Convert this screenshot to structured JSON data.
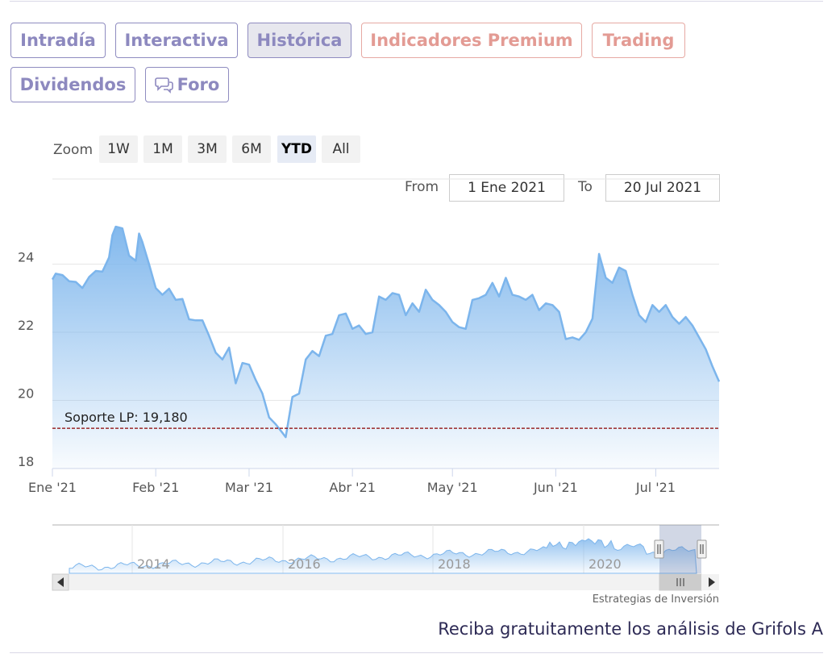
{
  "tabs": [
    {
      "label": "Intradía",
      "active": false,
      "premium": false
    },
    {
      "label": "Interactiva",
      "active": false,
      "premium": false
    },
    {
      "label": "Histórica",
      "active": true,
      "premium": false
    },
    {
      "label": "Indicadores Premium",
      "active": false,
      "premium": true
    },
    {
      "label": "Trading",
      "active": false,
      "premium": true
    },
    {
      "label": "Dividendos",
      "active": false,
      "premium": false
    },
    {
      "label": "Foro",
      "active": false,
      "premium": false,
      "icon": "chat-bubbles-icon"
    }
  ],
  "zoom": {
    "label": "Zoom",
    "options": [
      "1W",
      "1M",
      "3M",
      "6M",
      "YTD",
      "All"
    ],
    "selected": "YTD"
  },
  "range": {
    "from_label": "From",
    "from_value": "1 Ene 2021",
    "to_label": "To",
    "to_value": "20 Jul 2021"
  },
  "chart_data": {
    "type": "area",
    "xlabel": "",
    "ylabel": "",
    "x_range": [
      "2021-01-01",
      "2021-07-20"
    ],
    "ylim": [
      18,
      26.5
    ],
    "y_ticks": [
      "18",
      "20",
      "22",
      "24"
    ],
    "x_ticks": [
      {
        "date": "2021-01-01",
        "label": "Ene '21"
      },
      {
        "date": "2021-02-01",
        "label": "Feb '21"
      },
      {
        "date": "2021-03-01",
        "label": "Mar '21"
      },
      {
        "date": "2021-04-01",
        "label": "Abr '21"
      },
      {
        "date": "2021-05-01",
        "label": "May '21"
      },
      {
        "date": "2021-06-01",
        "label": "Jun '21"
      },
      {
        "date": "2021-07-01",
        "label": "Jul '21"
      }
    ],
    "grid": true,
    "line_color": "#7cb5ec",
    "support_line": {
      "label": "Soporte LP: 19,180",
      "value": 19.18,
      "color": "#8b0000"
    },
    "series": [
      {
        "x": [
          "2021-01-01",
          "2021-01-02",
          "2021-01-04",
          "2021-01-06",
          "2021-01-08",
          "2021-01-10",
          "2021-01-12",
          "2021-01-14",
          "2021-01-16",
          "2021-01-18",
          "2021-01-19",
          "2021-01-20",
          "2021-01-22",
          "2021-01-24",
          "2021-01-26",
          "2021-01-27",
          "2021-01-28",
          "2021-01-30",
          "2021-02-01",
          "2021-02-03",
          "2021-02-05",
          "2021-02-07",
          "2021-02-09",
          "2021-02-11",
          "2021-02-13",
          "2021-02-15",
          "2021-02-17",
          "2021-02-19",
          "2021-02-21",
          "2021-02-23",
          "2021-02-25",
          "2021-02-27",
          "2021-03-01",
          "2021-03-03",
          "2021-03-05",
          "2021-03-07",
          "2021-03-09",
          "2021-03-11",
          "2021-03-12",
          "2021-03-14",
          "2021-03-16",
          "2021-03-18",
          "2021-03-20",
          "2021-03-22",
          "2021-03-24",
          "2021-03-26",
          "2021-03-28",
          "2021-03-30",
          "2021-04-01",
          "2021-04-03",
          "2021-04-05",
          "2021-04-07",
          "2021-04-09",
          "2021-04-11",
          "2021-04-13",
          "2021-04-15",
          "2021-04-17",
          "2021-04-19",
          "2021-04-21",
          "2021-04-23",
          "2021-04-25",
          "2021-04-27",
          "2021-04-29",
          "2021-05-01",
          "2021-05-03",
          "2021-05-05",
          "2021-05-07",
          "2021-05-09",
          "2021-05-11",
          "2021-05-13",
          "2021-05-15",
          "2021-05-17",
          "2021-05-19",
          "2021-05-21",
          "2021-05-23",
          "2021-05-25",
          "2021-05-27",
          "2021-05-29",
          "2021-05-31",
          "2021-06-02",
          "2021-06-04",
          "2021-06-06",
          "2021-06-08",
          "2021-06-10",
          "2021-06-12",
          "2021-06-14",
          "2021-06-16",
          "2021-06-18",
          "2021-06-20",
          "2021-06-22",
          "2021-06-24",
          "2021-06-26",
          "2021-06-28",
          "2021-06-30",
          "2021-07-02",
          "2021-07-04",
          "2021-07-06",
          "2021-07-08",
          "2021-07-10",
          "2021-07-12",
          "2021-07-14",
          "2021-07-16",
          "2021-07-18",
          "2021-07-20"
        ],
        "values": [
          23.55,
          23.72,
          23.68,
          23.5,
          23.48,
          23.3,
          23.62,
          23.8,
          23.78,
          24.2,
          24.85,
          25.1,
          25.05,
          24.25,
          24.1,
          24.9,
          24.65,
          24.0,
          23.3,
          23.1,
          23.28,
          22.95,
          22.98,
          22.38,
          22.35,
          22.35,
          21.9,
          21.4,
          21.2,
          21.55,
          20.5,
          21.1,
          21.05,
          20.6,
          20.2,
          19.5,
          19.3,
          19.05,
          18.92,
          20.1,
          20.2,
          21.2,
          21.45,
          21.3,
          21.9,
          21.95,
          22.5,
          22.55,
          22.1,
          22.2,
          21.95,
          22.0,
          23.05,
          22.95,
          23.15,
          23.1,
          22.5,
          22.85,
          22.6,
          23.25,
          22.95,
          22.8,
          22.6,
          22.3,
          22.15,
          22.1,
          22.95,
          23.0,
          23.1,
          23.45,
          23.05,
          23.6,
          23.1,
          23.05,
          22.95,
          23.1,
          22.65,
          22.85,
          22.8,
          22.6,
          21.8,
          21.85,
          21.78,
          22.0,
          22.4,
          24.3,
          23.6,
          23.45,
          23.9,
          23.8,
          23.1,
          22.5,
          22.3,
          22.8,
          22.6,
          22.8,
          22.45,
          22.25,
          22.45,
          22.2,
          21.85,
          21.5,
          21.0,
          20.55
        ],
        "name": ""
      }
    ],
    "navigator": {
      "x_ticks": [
        "2014",
        "2016",
        "2018",
        "2020"
      ],
      "credit": "Estrategias de Inversión"
    }
  },
  "cta": {
    "text": "Reciba gratuitamente los análisis de Grifols A"
  }
}
